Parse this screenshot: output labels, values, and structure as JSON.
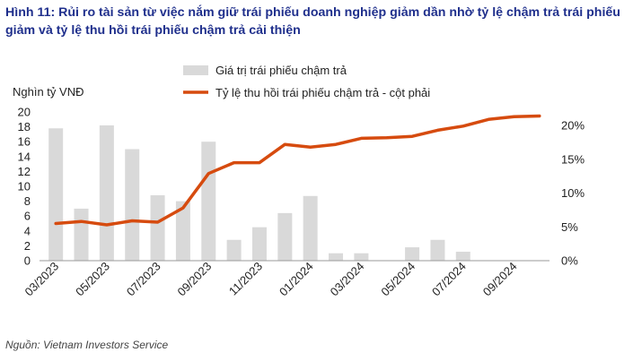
{
  "title": "Hình 11: Rủi ro tài sản từ việc nắm giữ trái phiếu doanh nghiệp giảm dần nhờ tỷ lệ chậm trả trái phiếu giảm và tỷ lệ thu hồi trái phiếu chậm trả cải thiện",
  "source": "Nguồn: Vietnam Investors Service",
  "colors": {
    "bar": "#d9d9d9",
    "line": "#d64b0f",
    "title": "#1f2f8c"
  },
  "chart_data": {
    "type": "bar+line",
    "ylabel": "Nghìn tỷ VNĐ",
    "y_left_ticks": [
      "0",
      "2",
      "4",
      "6",
      "8",
      "10",
      "12",
      "14",
      "16",
      "18",
      "20"
    ],
    "y_left_lim": [
      0,
      20
    ],
    "y_right_ticks": [
      "0%",
      "5%",
      "10%",
      "15%",
      "20%"
    ],
    "y_right_lim": [
      0,
      0.22
    ],
    "x_tick_labels": [
      "03/2023",
      "05/2023",
      "07/2023",
      "09/2023",
      "11/2023",
      "01/2024",
      "03/2024",
      "05/2024",
      "07/2024",
      "09/2024"
    ],
    "categories": [
      "03/2023",
      "04/2023",
      "05/2023",
      "06/2023",
      "07/2023",
      "08/2023",
      "09/2023",
      "10/2023",
      "11/2023",
      "12/2023",
      "01/2024",
      "02/2024",
      "03/2024",
      "04/2024",
      "05/2024",
      "06/2024",
      "07/2024",
      "08/2024",
      "09/2024",
      "10/2024"
    ],
    "legend_position": "top",
    "series": [
      {
        "name": "Giá trị trái phiếu chậm trả",
        "type": "bar",
        "axis": "left",
        "values": [
          17.8,
          7.0,
          18.2,
          15.0,
          8.8,
          8.0,
          16.0,
          2.8,
          4.5,
          6.4,
          8.7,
          1.0,
          1.0,
          0.0,
          1.8,
          2.8,
          1.2,
          0.0,
          0.0,
          0.0
        ]
      },
      {
        "name": "Tỷ lệ thu hồi trái phiếu chậm trả - cột phải",
        "type": "line",
        "axis": "right",
        "values": [
          0.055,
          0.058,
          0.053,
          0.059,
          0.057,
          0.078,
          0.129,
          0.145,
          0.145,
          0.172,
          0.168,
          0.172,
          0.181,
          0.182,
          0.184,
          0.193,
          0.199,
          0.209,
          0.213,
          0.214
        ]
      }
    ]
  }
}
